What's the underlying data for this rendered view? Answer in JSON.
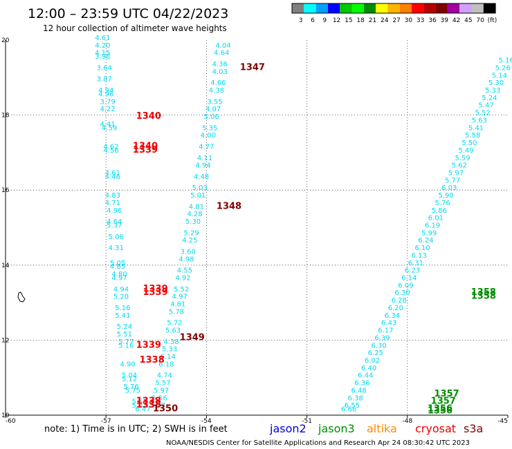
{
  "header": {
    "title": "12:00 – 23:59 UTC 04/22/2023",
    "subtitle": "12 hour collection of altimeter wave heights"
  },
  "legend": {
    "colors": [
      "#808080",
      "#00ffff",
      "#00a0ff",
      "#0000ff",
      "#00c800",
      "#00ff00",
      "#008c00",
      "#ffff00",
      "#ffb400",
      "#ff8000",
      "#ff0000",
      "#b40000",
      "#800000",
      "#a000a0",
      "#d0a0ff",
      "#c0c0c0",
      "#000000"
    ],
    "labels": [
      "3",
      "6",
      "9",
      "12",
      "15",
      "18",
      "21",
      "24",
      "27",
      "30",
      "33",
      "36",
      "39",
      "42",
      "45",
      "70",
      "(ft)"
    ]
  },
  "footer": {
    "note": "note:  1) Time is in UTC;  2) SWH is in feet",
    "missions": [
      {
        "name": "jason2",
        "color": "#0000dd"
      },
      {
        "name": "jason3",
        "color": "#008c00"
      },
      {
        "name": "altika",
        "color": "#ff8c00"
      },
      {
        "name": "cryosat",
        "color": "#ee0000"
      },
      {
        "name": "s3a",
        "color": "#800000"
      }
    ],
    "credit": "NOAA/NESDIS Center for Satellite Applications and Research     Apr 24 08:30:42 UTC 2023"
  },
  "chart_data": {
    "type": "scatter",
    "xlim": [
      -60,
      -45
    ],
    "ylim": [
      10,
      20
    ],
    "x_ticks": [
      "-60",
      "-57",
      "-54",
      "-51",
      "-48",
      "-45"
    ],
    "y_ticks": [
      "10",
      "12",
      "14",
      "16",
      "18",
      "20"
    ],
    "grid": true,
    "color_wave": "#00d8f0",
    "tracks": [
      {
        "id": "track-a",
        "color": "#00d8f0",
        "points": [
          [
            -57.1,
            20.0,
            "4.61"
          ],
          [
            -57.1,
            19.8,
            "4.20"
          ],
          [
            -57.1,
            19.6,
            "4.15"
          ],
          [
            -57.1,
            19.5,
            "3.98"
          ],
          [
            -57.05,
            19.2,
            "3.64"
          ],
          [
            -57.05,
            18.9,
            "3.87"
          ],
          [
            -57.0,
            18.6,
            "4.94"
          ],
          [
            -57.0,
            18.5,
            "4.96"
          ],
          [
            -56.95,
            18.3,
            "3.79"
          ],
          [
            -56.95,
            18.1,
            "4.22"
          ],
          [
            -56.95,
            17.7,
            "4.41"
          ],
          [
            -56.9,
            17.6,
            "4.59"
          ],
          [
            -56.85,
            17.1,
            "4.62"
          ],
          [
            -56.85,
            17.0,
            "4.56"
          ],
          [
            -56.8,
            16.4,
            "4.61"
          ],
          [
            -56.8,
            16.3,
            "4.46"
          ],
          [
            -56.8,
            15.8,
            "4.83"
          ],
          [
            -56.8,
            15.6,
            "4.71"
          ],
          [
            -56.75,
            15.4,
            "4.96"
          ],
          [
            -56.75,
            15.1,
            "4.64"
          ],
          [
            -56.75,
            15.0,
            "5.37"
          ],
          [
            -56.7,
            14.7,
            "5.06"
          ],
          [
            -56.7,
            14.4,
            "4.31"
          ],
          [
            -56.65,
            14.0,
            "5.05"
          ],
          [
            -56.65,
            13.9,
            "4.85"
          ],
          [
            -56.6,
            13.7,
            "4.80"
          ],
          [
            -56.6,
            13.6,
            "4.97"
          ],
          [
            -56.55,
            13.3,
            "4.94"
          ],
          [
            -56.55,
            13.1,
            "5.20"
          ],
          [
            -56.5,
            12.8,
            "5.16"
          ],
          [
            -56.5,
            12.6,
            "5.41"
          ],
          [
            -56.45,
            12.3,
            "5.24"
          ],
          [
            -56.45,
            12.1,
            "5.51"
          ],
          [
            -56.4,
            11.9,
            "5.77"
          ],
          [
            -56.4,
            11.8,
            "5.16"
          ],
          [
            -56.35,
            11.3,
            "4.90"
          ],
          [
            -56.3,
            11.0,
            "5.04"
          ],
          [
            -56.3,
            10.9,
            "5.12"
          ],
          [
            -56.25,
            10.7,
            "5.76"
          ],
          [
            -56.2,
            10.6,
            "5.75"
          ],
          [
            -56.0,
            10.3,
            "5.53"
          ],
          [
            -56.0,
            10.2,
            "5.82"
          ],
          [
            -55.9,
            10.1,
            "6.47"
          ]
        ]
      },
      {
        "id": "track-b",
        "color": "#00d8f0",
        "points": [
          [
            -53.5,
            19.8,
            "4.04"
          ],
          [
            -53.55,
            19.6,
            "4.64"
          ],
          [
            -53.6,
            19.3,
            "4.36"
          ],
          [
            -53.6,
            19.1,
            "4.03"
          ],
          [
            -53.65,
            18.8,
            "4.66"
          ],
          [
            -53.7,
            18.6,
            "4.38"
          ],
          [
            -53.75,
            18.3,
            "3.55"
          ],
          [
            -53.8,
            18.1,
            "4.07"
          ],
          [
            -53.85,
            17.9,
            "5.06"
          ],
          [
            -53.9,
            17.6,
            "5.35"
          ],
          [
            -53.95,
            17.4,
            "4.00"
          ],
          [
            -54.0,
            17.1,
            "4.77"
          ],
          [
            -54.05,
            16.8,
            "4.11"
          ],
          [
            -54.1,
            16.6,
            "4.94"
          ],
          [
            -54.15,
            16.3,
            "4.48"
          ],
          [
            -54.2,
            16.0,
            "5.03"
          ],
          [
            -54.25,
            15.8,
            "5.01"
          ],
          [
            -54.3,
            15.5,
            "4.81"
          ],
          [
            -54.35,
            15.3,
            "4.28"
          ],
          [
            -54.4,
            15.1,
            "5.30"
          ],
          [
            -54.45,
            14.8,
            "5.29"
          ],
          [
            -54.5,
            14.6,
            "4.25"
          ],
          [
            -54.55,
            14.3,
            "3.60"
          ],
          [
            -54.6,
            14.1,
            "4.98"
          ],
          [
            -54.65,
            13.8,
            "4.55"
          ],
          [
            -54.7,
            13.6,
            "4.92"
          ],
          [
            -54.75,
            13.3,
            "5.52"
          ],
          [
            -54.8,
            13.1,
            "4.97"
          ],
          [
            -54.85,
            12.9,
            "4.81"
          ],
          [
            -54.9,
            12.7,
            "5.78"
          ],
          [
            -54.95,
            12.4,
            "5.72"
          ],
          [
            -55.0,
            12.2,
            "5.63"
          ],
          [
            -55.05,
            11.9,
            "4.38"
          ],
          [
            -55.1,
            11.7,
            "5.33"
          ],
          [
            -55.15,
            11.5,
            "6.14"
          ],
          [
            -55.2,
            11.3,
            "6.18"
          ],
          [
            -55.25,
            11.0,
            "4.74"
          ],
          [
            -55.3,
            10.8,
            "5.57"
          ],
          [
            -55.35,
            10.6,
            "5.97"
          ],
          [
            -55.4,
            10.4,
            "5.56"
          ],
          [
            -55.45,
            10.2,
            "5.97"
          ]
        ]
      },
      {
        "id": "track-c",
        "color": "#00d8f0",
        "points": [
          [
            -45.05,
            19.4,
            "5.16"
          ],
          [
            -45.15,
            19.2,
            "5.26"
          ],
          [
            -45.25,
            19.0,
            "5.14"
          ],
          [
            -45.35,
            18.8,
            "5.30"
          ],
          [
            -45.45,
            18.6,
            "5.33"
          ],
          [
            -45.55,
            18.4,
            "5.24"
          ],
          [
            -45.65,
            18.2,
            "5.47"
          ],
          [
            -45.75,
            18.0,
            "5.52"
          ],
          [
            -45.85,
            17.8,
            "5.63"
          ],
          [
            -45.95,
            17.6,
            "5.41"
          ],
          [
            -46.05,
            17.4,
            "5.58"
          ],
          [
            -46.15,
            17.2,
            "5.50"
          ],
          [
            -46.25,
            17.0,
            "5.49"
          ],
          [
            -46.35,
            16.8,
            "5.59"
          ],
          [
            -46.45,
            16.6,
            "5.62"
          ],
          [
            -46.55,
            16.4,
            "5.97"
          ],
          [
            -46.65,
            16.2,
            "5.77"
          ],
          [
            -46.75,
            16.0,
            "6.03"
          ],
          [
            -46.85,
            15.8,
            "5.90"
          ],
          [
            -46.95,
            15.6,
            "5.76"
          ],
          [
            -47.05,
            15.4,
            "5.86"
          ],
          [
            -47.15,
            15.2,
            "6.01"
          ],
          [
            -47.25,
            15.0,
            "6.19"
          ],
          [
            -47.35,
            14.8,
            "5.99"
          ],
          [
            -47.45,
            14.6,
            "6.24"
          ],
          [
            -47.55,
            14.4,
            "6.10"
          ],
          [
            -47.65,
            14.2,
            "6.13"
          ],
          [
            -47.75,
            14.0,
            "6.31"
          ],
          [
            -47.85,
            13.8,
            "6.23"
          ],
          [
            -47.95,
            13.6,
            "6.14"
          ],
          [
            -48.05,
            13.4,
            "6.09"
          ],
          [
            -48.15,
            13.2,
            "6.30"
          ],
          [
            -48.25,
            13.0,
            "6.28"
          ],
          [
            -48.35,
            12.8,
            "6.20"
          ],
          [
            -48.45,
            12.6,
            "6.34"
          ],
          [
            -48.55,
            12.4,
            "6.43"
          ],
          [
            -48.65,
            12.2,
            "6.17"
          ],
          [
            -48.75,
            12.0,
            "6.39"
          ],
          [
            -48.85,
            11.8,
            "6.30"
          ],
          [
            -48.95,
            11.6,
            "6.25"
          ],
          [
            -49.05,
            11.4,
            "6.02"
          ],
          [
            -49.15,
            11.2,
            "6.40"
          ],
          [
            -49.25,
            11.0,
            "6.44"
          ],
          [
            -49.35,
            10.8,
            "6.36"
          ],
          [
            -49.45,
            10.6,
            "6.48"
          ],
          [
            -49.55,
            10.4,
            "6.38"
          ],
          [
            -49.65,
            10.2,
            "6.55"
          ],
          [
            -49.75,
            10.1,
            "6.66"
          ]
        ]
      }
    ],
    "pass_labels": [
      {
        "x": -56.1,
        "y": 17.9,
        "text": "1340",
        "color": "#ee0000"
      },
      {
        "x": -56.2,
        "y": 17.1,
        "text": "1340",
        "color": "#ee0000"
      },
      {
        "x": -56.2,
        "y": 17.0,
        "text": "1339",
        "color": "#ee0000"
      },
      {
        "x": -55.9,
        "y": 13.3,
        "text": "1339",
        "color": "#ee0000"
      },
      {
        "x": -55.9,
        "y": 13.2,
        "text": "1339",
        "color": "#ee0000"
      },
      {
        "x": -56.1,
        "y": 11.8,
        "text": "1339",
        "color": "#ee0000"
      },
      {
        "x": -56.0,
        "y": 11.4,
        "text": "1338",
        "color": "#ee0000"
      },
      {
        "x": -56.1,
        "y": 10.3,
        "text": "1338",
        "color": "#ee0000"
      },
      {
        "x": -56.1,
        "y": 10.2,
        "text": "1338",
        "color": "#ee0000"
      },
      {
        "x": -53.0,
        "y": 19.2,
        "text": "1347",
        "color": "#800000"
      },
      {
        "x": -53.7,
        "y": 15.5,
        "text": "1348",
        "color": "#800000"
      },
      {
        "x": -54.8,
        "y": 12.0,
        "text": "1349",
        "color": "#800000"
      },
      {
        "x": -55.6,
        "y": 10.1,
        "text": "1350",
        "color": "#800000"
      },
      {
        "x": -46.1,
        "y": 13.2,
        "text": "1358",
        "color": "#008c00"
      },
      {
        "x": -46.1,
        "y": 13.1,
        "text": "1358",
        "color": "#008c00"
      },
      {
        "x": -47.2,
        "y": 10.5,
        "text": "1357",
        "color": "#008c00"
      },
      {
        "x": -47.3,
        "y": 10.3,
        "text": "1357",
        "color": "#008c00"
      },
      {
        "x": -47.4,
        "y": 10.1,
        "text": "1356",
        "color": "#008c00"
      },
      {
        "x": -47.4,
        "y": 10.05,
        "text": "1356",
        "color": "#008c00"
      }
    ]
  }
}
